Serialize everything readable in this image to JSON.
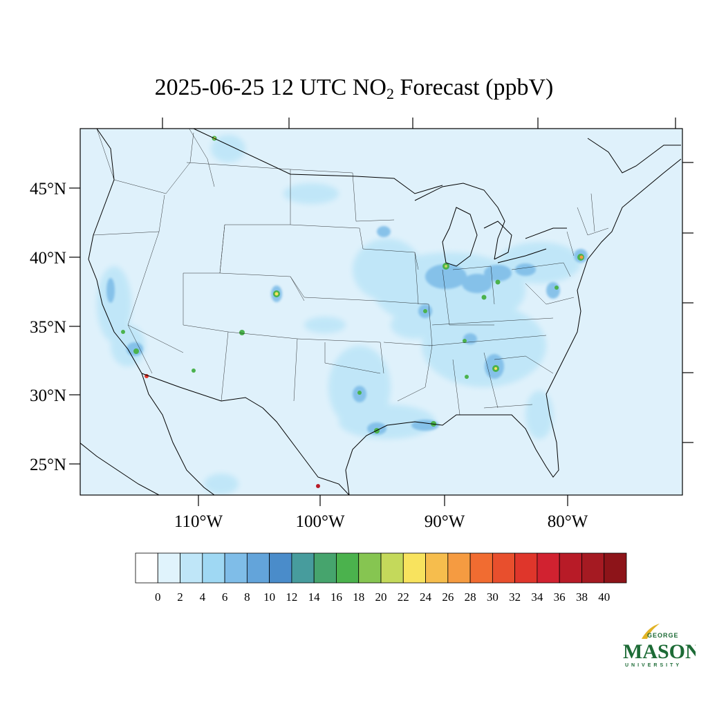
{
  "title": {
    "prefix": "2025-06-25 12 UTC NO",
    "subscript": "2",
    "suffix": " Forecast (ppbV)"
  },
  "map": {
    "projection": "lambert-conformal",
    "extent_note": "contiguous United States",
    "lat_labels": [
      "45°N",
      "40°N",
      "35°N",
      "30°N",
      "25°N"
    ],
    "lon_labels": [
      "110°W",
      "100°W",
      "90°W",
      "80°W"
    ],
    "ocean_background": "#dff1fb"
  },
  "colorbar": {
    "tick_labels": [
      "0",
      "2",
      "4",
      "6",
      "8",
      "10",
      "12",
      "14",
      "16",
      "18",
      "20",
      "22",
      "24",
      "26",
      "28",
      "30",
      "32",
      "34",
      "36",
      "38",
      "40"
    ],
    "colors": [
      "#ffffff",
      "#e0f3fc",
      "#bfe6f8",
      "#9fd8f3",
      "#7fbde8",
      "#63a4da",
      "#4a8cca",
      "#479c9d",
      "#46a46d",
      "#4bb24d",
      "#86c551",
      "#c4d95b",
      "#f8e35e",
      "#f6bd4d",
      "#f59b41",
      "#f16c31",
      "#e84f2d",
      "#df362b",
      "#d12230",
      "#b81b27",
      "#a51a22",
      "#8d1419"
    ]
  },
  "logo": {
    "top": "GEORGE",
    "main": "MASON",
    "bottom": "UNIVERSITY",
    "color": "#1d6b36",
    "accent": "#e2b325"
  }
}
